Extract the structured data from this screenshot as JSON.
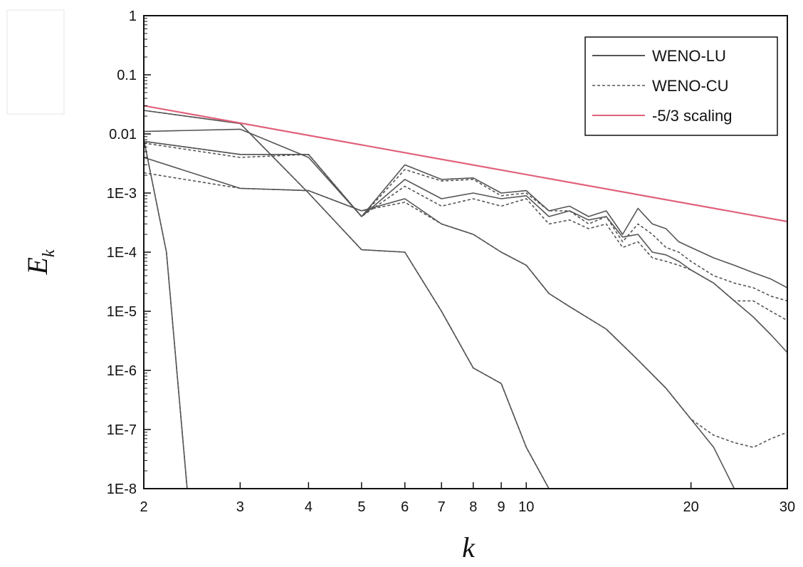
{
  "chart_data": {
    "type": "line",
    "xlabel": "k",
    "ylabel": "E",
    "ylabel_subscript": "k",
    "x_scale": "log",
    "y_scale": "log",
    "xlim": [
      2,
      30
    ],
    "ylim": [
      1e-08,
      1
    ],
    "x_ticks": [
      {
        "value": 2,
        "label": "2"
      },
      {
        "value": 3,
        "label": "3"
      },
      {
        "value": 4,
        "label": "4"
      },
      {
        "value": 5,
        "label": "5"
      },
      {
        "value": 6,
        "label": "6"
      },
      {
        "value": 7,
        "label": "7"
      },
      {
        "value": 8,
        "label": "8"
      },
      {
        "value": 9,
        "label": "9"
      },
      {
        "value": 10,
        "label": "10"
      },
      {
        "value": 20,
        "label": "20"
      },
      {
        "value": 30,
        "label": "30"
      }
    ],
    "y_ticks": [
      {
        "value": 1,
        "label": "1"
      },
      {
        "value": 0.1,
        "label": "0.1"
      },
      {
        "value": 0.01,
        "label": "0.01"
      },
      {
        "value": 0.001,
        "label": "1E-3"
      },
      {
        "value": 0.0001,
        "label": "1E-4"
      },
      {
        "value": 1e-05,
        "label": "1E-5"
      },
      {
        "value": 1e-06,
        "label": "1E-6"
      },
      {
        "value": 1e-07,
        "label": "1E-7"
      },
      {
        "value": 1e-08,
        "label": "1E-8"
      }
    ],
    "grid": false,
    "legend_position": "top-right",
    "legend": [
      {
        "label": "WENO-LU",
        "style": "solid",
        "color": "#555555"
      },
      {
        "label": "WENO-CU",
        "style": "dotted",
        "color": "#555555"
      },
      {
        "label": "-5/3 scaling",
        "style": "solid",
        "color": "#e0607a"
      }
    ],
    "series": [
      {
        "group": "WENO-LU",
        "style": "solid",
        "color": "#555555",
        "x": [
          2,
          2.2,
          2.4
        ],
        "y": [
          0.008,
          0.0001,
          1e-08
        ]
      },
      {
        "group": "WENO-CU",
        "style": "dotted",
        "color": "#555555",
        "x": [
          2,
          2.2,
          2.4
        ],
        "y": [
          0.008,
          0.0001,
          1e-08
        ]
      },
      {
        "group": "WENO-LU",
        "style": "solid",
        "color": "#555555",
        "x": [
          2,
          3,
          4,
          5,
          6,
          7,
          8,
          9,
          10,
          11
        ],
        "y": [
          0.025,
          0.015,
          0.001,
          0.00011,
          0.0001,
          1e-05,
          1.1e-06,
          6e-07,
          5e-08,
          1e-08
        ]
      },
      {
        "group": "WENO-CU",
        "style": "dotted",
        "color": "#555555",
        "x": [
          2,
          3,
          4,
          5,
          6,
          7,
          8,
          9,
          10,
          11
        ],
        "y": [
          0.025,
          0.015,
          0.001,
          0.00011,
          0.0001,
          1e-05,
          1.1e-06,
          6e-07,
          5e-08,
          1e-08
        ]
      },
      {
        "group": "WENO-LU",
        "style": "solid",
        "color": "#555555",
        "x": [
          2,
          3,
          4,
          5,
          6,
          7,
          8,
          9,
          10,
          11,
          12,
          14,
          16,
          18,
          20,
          22,
          24
        ],
        "y": [
          0.004,
          0.0012,
          0.0011,
          0.0005,
          0.0008,
          0.0003,
          0.0002,
          0.0001,
          6e-05,
          2e-05,
          1.2e-05,
          5e-06,
          1.5e-06,
          5e-07,
          1.5e-07,
          5e-08,
          1e-08
        ]
      },
      {
        "group": "WENO-CU",
        "style": "dotted",
        "color": "#555555",
        "x": [
          2,
          3,
          4,
          5,
          6,
          7,
          8,
          9,
          10,
          11,
          12,
          14,
          16,
          18,
          20,
          22,
          24,
          26,
          28,
          30
        ],
        "y": [
          0.0022,
          0.0012,
          0.0011,
          0.0005,
          0.0007,
          0.0003,
          0.0002,
          0.0001,
          6e-05,
          2e-05,
          1.2e-05,
          5e-06,
          1.5e-06,
          5e-07,
          1.5e-07,
          8e-08,
          6e-08,
          5e-08,
          7e-08,
          9e-08
        ]
      },
      {
        "group": "WENO-LU",
        "style": "solid",
        "color": "#555555",
        "x": [
          2,
          3,
          4,
          5,
          6,
          7,
          8,
          9,
          10,
          11,
          12,
          13,
          14,
          15,
          16,
          17,
          18,
          19,
          20,
          22,
          24,
          26,
          28,
          30
        ],
        "y": [
          0.011,
          0.012,
          0.004,
          0.0004,
          0.0017,
          0.0008,
          0.001,
          0.0008,
          0.0009,
          0.0004,
          0.0005,
          0.00035,
          0.0004,
          0.00018,
          0.0002,
          0.0001,
          9e-05,
          7e-05,
          5e-05,
          3e-05,
          1.5e-05,
          8e-06,
          4e-06,
          2e-06
        ]
      },
      {
        "group": "WENO-CU",
        "style": "dotted",
        "color": "#555555",
        "x": [
          2,
          3,
          4,
          5,
          6,
          7,
          8,
          9,
          10,
          11,
          12,
          13,
          14,
          15,
          16,
          17,
          18,
          19,
          20,
          22,
          24,
          26,
          28,
          30
        ],
        "y": [
          0.007,
          0.004,
          0.0045,
          0.0004,
          0.0013,
          0.0006,
          0.0008,
          0.0006,
          0.0008,
          0.0003,
          0.00035,
          0.00025,
          0.0003,
          0.00012,
          0.00015,
          8e-05,
          7e-05,
          6e-05,
          5e-05,
          3e-05,
          1.5e-05,
          1.5e-05,
          1e-05,
          7e-06
        ]
      },
      {
        "group": "WENO-LU",
        "style": "solid",
        "color": "#555555",
        "x": [
          2,
          3,
          4,
          5,
          6,
          7,
          8,
          9,
          10,
          11,
          12,
          13,
          14,
          15,
          16,
          17,
          18,
          19,
          20,
          22,
          24,
          26,
          28,
          30
        ],
        "y": [
          0.0075,
          0.0045,
          0.0045,
          0.0004,
          0.003,
          0.0017,
          0.0018,
          0.001,
          0.0011,
          0.0005,
          0.0006,
          0.0004,
          0.0005,
          0.0002,
          0.00055,
          0.0003,
          0.00025,
          0.00015,
          0.00012,
          8e-05,
          6e-05,
          4.5e-05,
          3.5e-05,
          2.5e-05
        ]
      },
      {
        "group": "WENO-CU",
        "style": "dotted",
        "color": "#555555",
        "x": [
          2,
          3,
          4,
          5,
          6,
          7,
          8,
          9,
          10,
          11,
          12,
          13,
          14,
          15,
          16,
          17,
          18,
          19,
          20,
          22,
          24,
          26,
          28,
          30
        ],
        "y": [
          0.0075,
          0.0045,
          0.0045,
          0.0004,
          0.0025,
          0.0016,
          0.0017,
          0.0009,
          0.001,
          0.0005,
          0.0005,
          0.0003,
          0.0004,
          0.00015,
          0.0003,
          0.0002,
          0.00012,
          0.0001,
          7e-05,
          4e-05,
          3e-05,
          2.5e-05,
          1.8e-05,
          1.5e-05
        ]
      },
      {
        "group": "-5/3 scaling",
        "style": "solid",
        "color": "#e0607a",
        "x": [
          2,
          30
        ],
        "y": [
          0.03,
          0.00033
        ]
      }
    ]
  }
}
